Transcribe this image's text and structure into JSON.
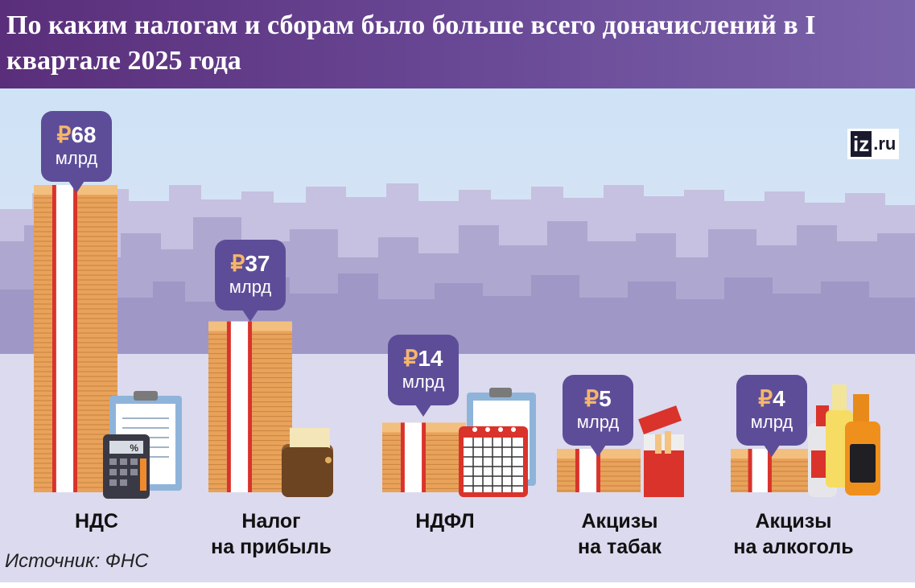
{
  "title": "По каким налогам и сборам было больше всего доначислений в I квартале 2025 года",
  "logo": {
    "main": "iz",
    "suffix": ".ru"
  },
  "source": "Источник: ФНС",
  "chart_data": {
    "type": "bar",
    "title": "По каким налогам и сборам было больше всего доначислений в I квартале 2025 года",
    "categories": [
      "НДС",
      "Налог на прибыль",
      "НДФЛ",
      "Акцизы на табак",
      "Акцизы на алкоголь"
    ],
    "category_lines": [
      [
        "НДС"
      ],
      [
        "Налог",
        "на прибыль"
      ],
      [
        "НДФЛ"
      ],
      [
        "Акцизы",
        "на табак"
      ],
      [
        "Акцизы",
        "на алкоголь"
      ]
    ],
    "values": [
      68,
      37,
      14,
      5,
      4
    ],
    "value_labels": [
      {
        "currency": "₽",
        "number": "68",
        "unit": "млрд"
      },
      {
        "currency": "₽",
        "number": "37",
        "unit": "млрд"
      },
      {
        "currency": "₽",
        "number": "14",
        "unit": "млрд"
      },
      {
        "currency": "₽",
        "number": "5",
        "unit": "млрд"
      },
      {
        "currency": "₽",
        "number": "4",
        "unit": "млрд"
      }
    ],
    "unit": "млрд",
    "xlabel": "",
    "ylabel": "",
    "grid": false,
    "legend": "none",
    "colors": {
      "bubble": "#5d4d99",
      "bill": "#e9a25a",
      "band": "#d9332b",
      "title_bar": "#6a4a97",
      "sky": "#c9def3",
      "city": "#b0a8d0"
    }
  }
}
